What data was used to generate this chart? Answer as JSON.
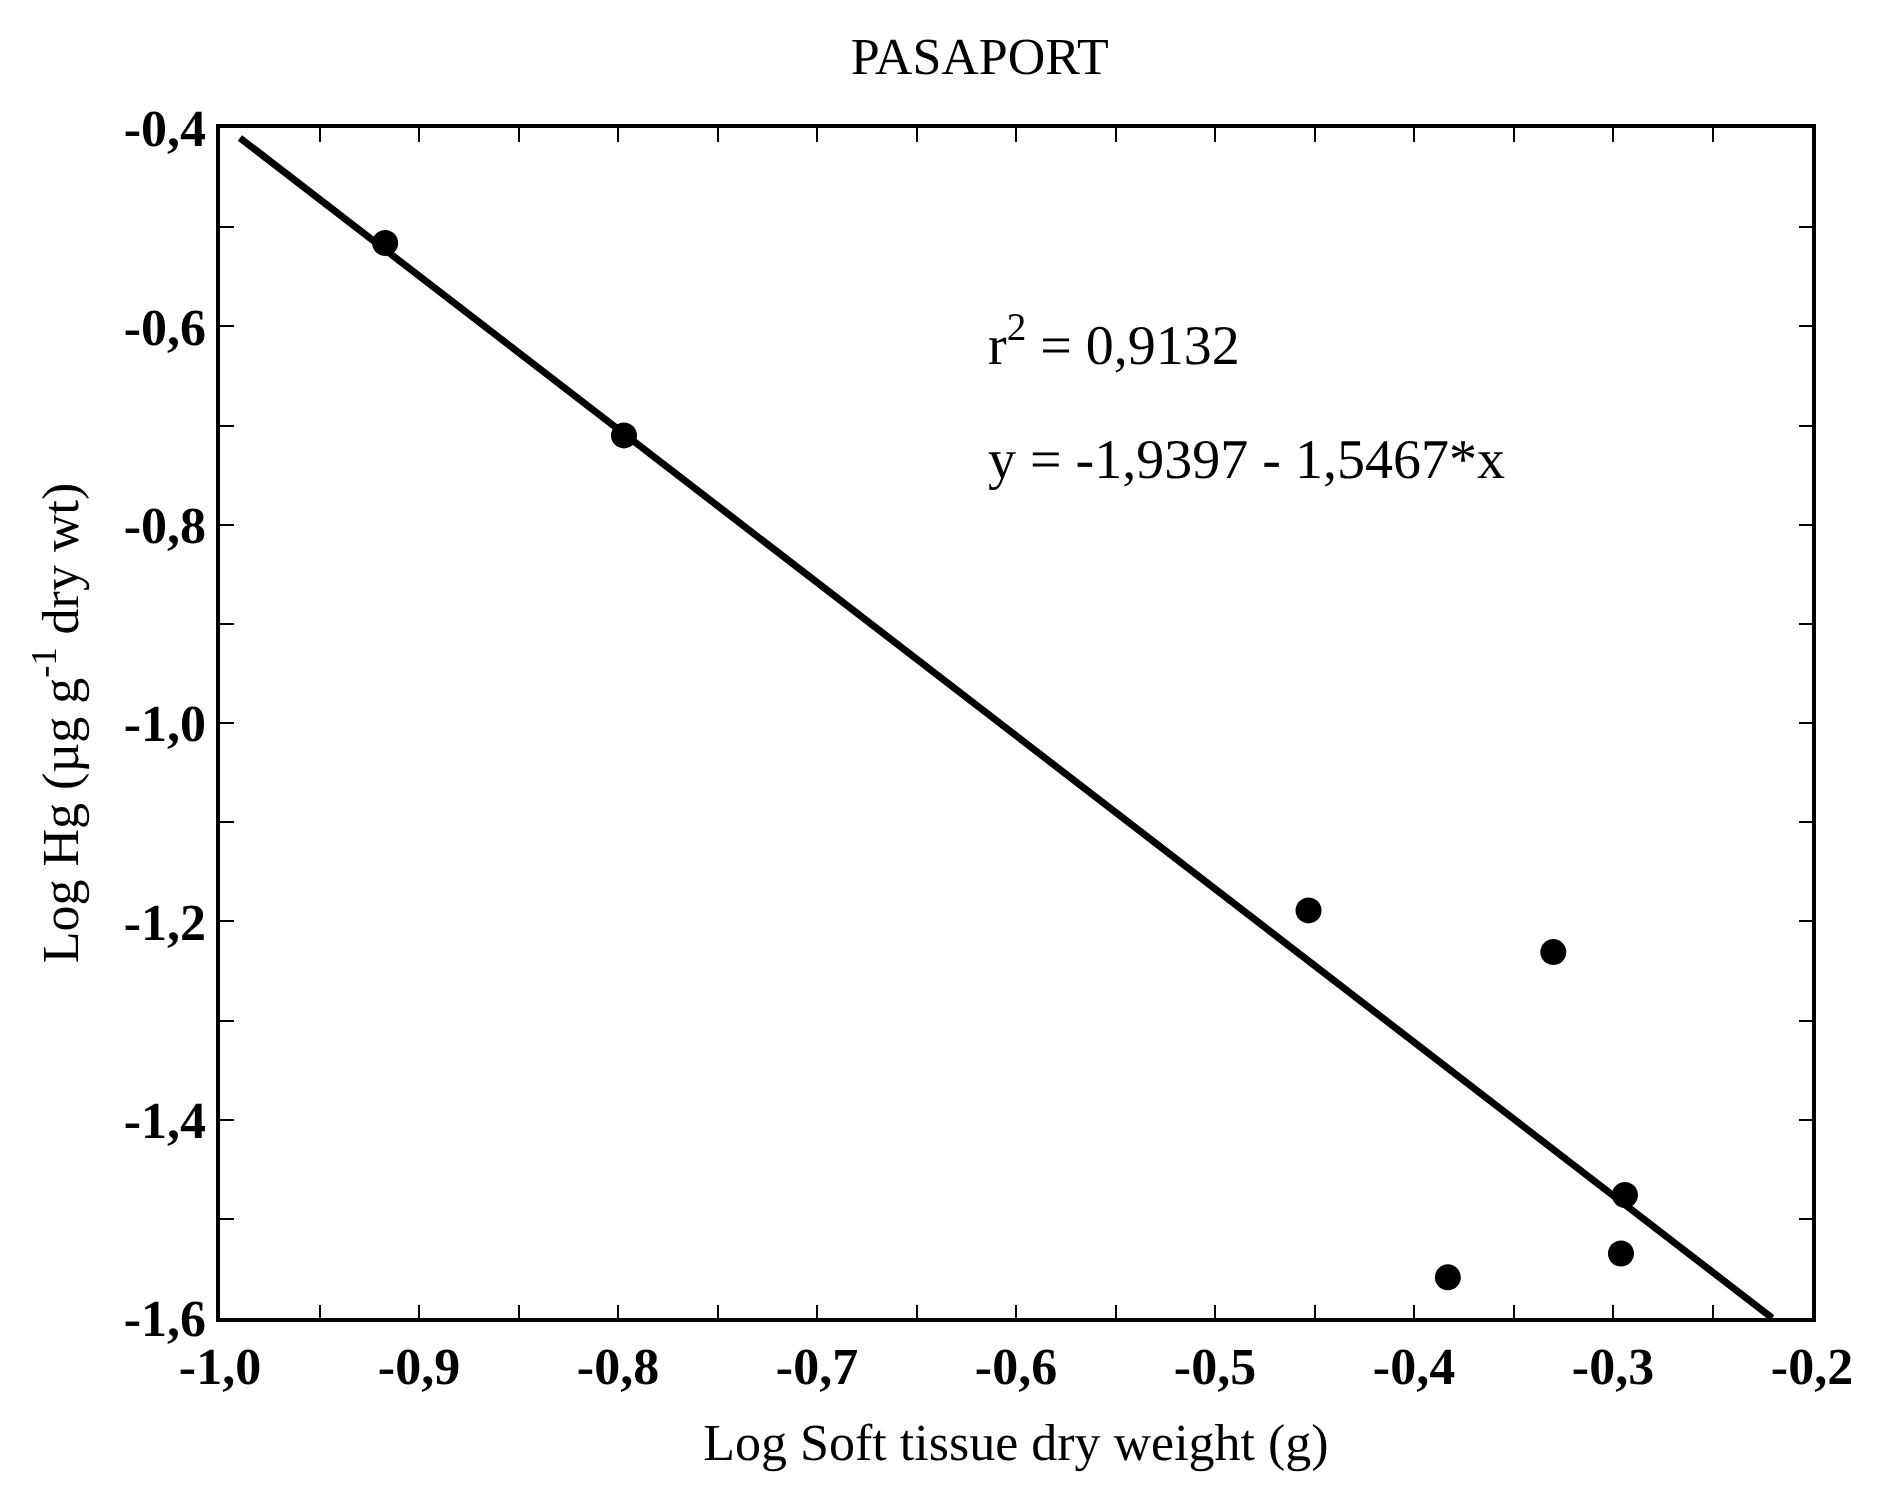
{
  "chart_data": {
    "type": "scatter",
    "title": "PASAPORT",
    "xlabel": "Log Soft tissue dry weight (g)",
    "ylabel": "Log Hg (µg g$^{-1}$ dry wt)",
    "annotations": [
      "r$^{2}$ = 0,9132",
      "y = -1,9397 - 1,5467*x"
    ],
    "series": [
      {
        "color": "#000000",
        "marker": "circle",
        "x": [
          -0.917,
          -0.797,
          -0.453,
          -0.33,
          -0.294,
          -0.296,
          -0.383
        ],
        "values": [
          -0.516,
          -0.71,
          -1.189,
          -1.231,
          -1.476,
          -1.535,
          -1.559
        ]
      },
      {
        "type": "line",
        "color": "#000000",
        "marker": "none",
        "line_style": "solid",
        "x": [
          -0.99,
          -0.22
        ],
        "values": [
          -0.41,
          -1.6
        ]
      }
    ],
    "xlim": [
      -1.0,
      -0.2
    ],
    "ylim": [
      -1.6,
      -0.4
    ],
    "xticks": [
      {
        "value": -1.0,
        "label": "-1,0"
      },
      {
        "value": -0.95,
        "label": null
      },
      {
        "value": -0.9,
        "label": "-0,9"
      },
      {
        "value": -0.85,
        "label": null
      },
      {
        "value": -0.8,
        "label": "-0,8"
      },
      {
        "value": -0.75,
        "label": null
      },
      {
        "value": -0.7,
        "label": "-0,7"
      },
      {
        "value": -0.65,
        "label": null
      },
      {
        "value": -0.6,
        "label": "-0,6"
      },
      {
        "value": -0.55,
        "label": null
      },
      {
        "value": -0.5,
        "label": "-0,5"
      },
      {
        "value": -0.45,
        "label": null
      },
      {
        "value": -0.4,
        "label": "-0,4"
      },
      {
        "value": -0.35,
        "label": null
      },
      {
        "value": -0.3,
        "label": "-0,3"
      },
      {
        "value": -0.25,
        "label": null
      },
      {
        "value": -0.2,
        "label": "-0,2"
      }
    ],
    "yticks": [
      {
        "value": -1.6,
        "label": "-1,6"
      },
      {
        "value": -1.5,
        "label": null
      },
      {
        "value": -1.4,
        "label": "-1,4"
      },
      {
        "value": -1.3,
        "label": null
      },
      {
        "value": -1.2,
        "label": "-1,2"
      },
      {
        "value": -1.1,
        "label": null
      },
      {
        "value": -1.0,
        "label": "-1,0"
      },
      {
        "value": -0.9,
        "label": null
      },
      {
        "value": -0.8,
        "label": "-0,8"
      },
      {
        "value": -0.7,
        "label": null
      },
      {
        "value": -0.6,
        "label": "-0,6"
      },
      {
        "value": -0.5,
        "label": null
      },
      {
        "value": -0.4,
        "label": "-0,4"
      }
    ]
  }
}
